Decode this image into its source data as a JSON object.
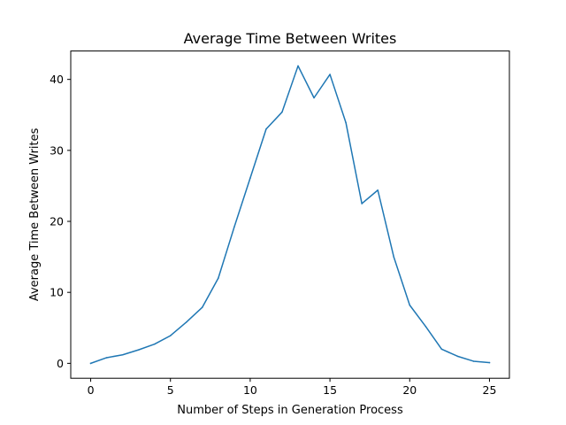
{
  "chart_data": {
    "type": "line",
    "title": "Average Time Between Writes",
    "xlabel": "Number of Steps in Generation Process",
    "ylabel": "Average Time Between Writes",
    "xlim": [
      -1.25,
      26.25
    ],
    "ylim": [
      -2.1,
      44.0
    ],
    "xticks": [
      "0",
      "5",
      "10",
      "15",
      "20",
      "25"
    ],
    "yticks": [
      "0",
      "10",
      "20",
      "30",
      "40"
    ],
    "grid": false,
    "series": [
      {
        "color": "#1f77b4",
        "x": [
          0,
          1,
          2,
          3,
          4,
          5,
          6,
          7,
          8,
          9,
          10,
          11,
          12,
          13,
          14,
          15,
          16,
          17,
          18,
          19,
          20,
          21,
          22,
          23,
          24,
          25
        ],
        "y": [
          0.0,
          0.8,
          1.2,
          1.9,
          2.7,
          3.9,
          5.8,
          7.9,
          12.0,
          19.2,
          26.1,
          33.0,
          35.4,
          41.9,
          37.4,
          40.7,
          33.9,
          22.5,
          24.4,
          15.0,
          8.2,
          5.2,
          2.0,
          1.0,
          0.3,
          0.1
        ]
      }
    ]
  }
}
